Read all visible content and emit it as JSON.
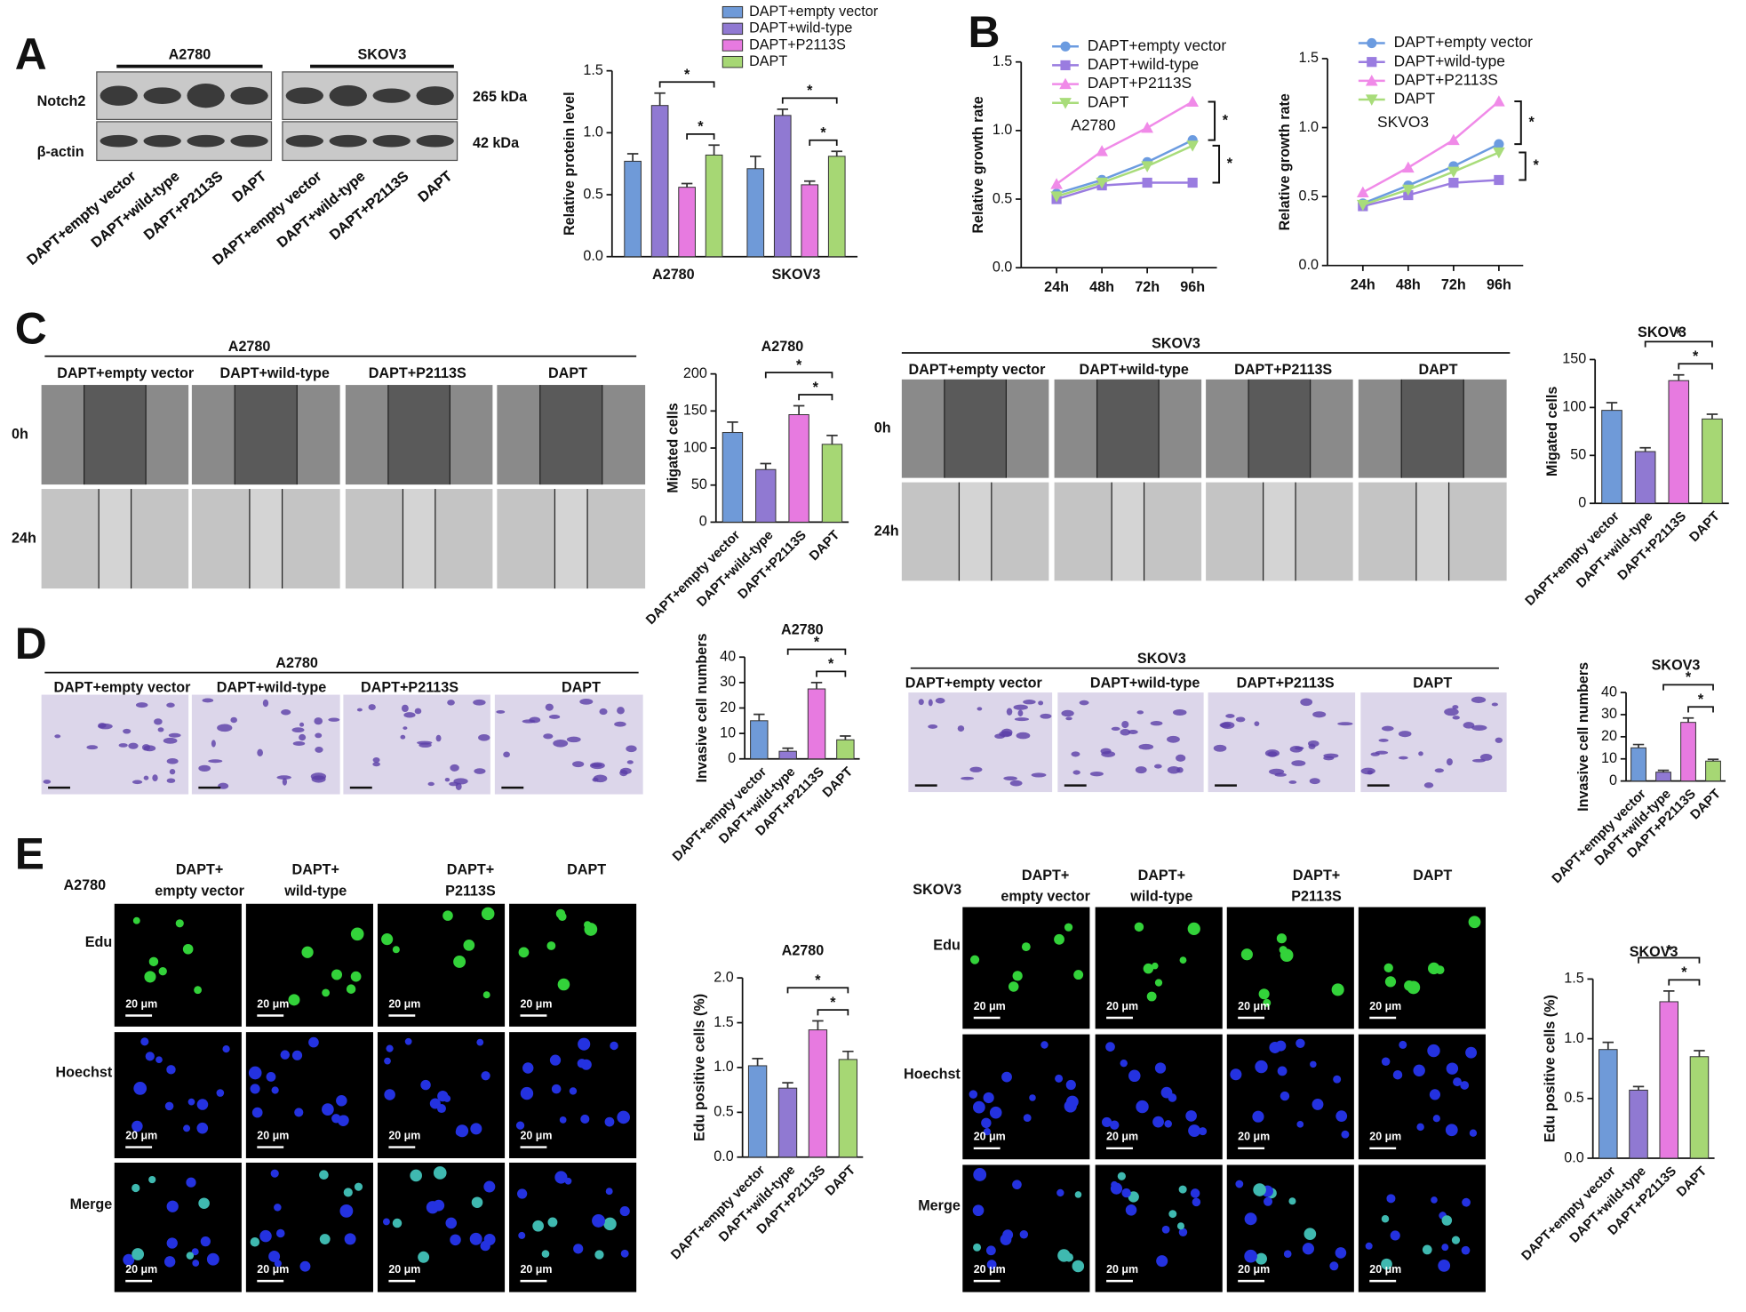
{
  "panel_labels": [
    "A",
    "B",
    "C",
    "D",
    "E"
  ],
  "blot": {
    "groups": [
      "A2780",
      "SKOV3"
    ],
    "rows": [
      "Notch2",
      "β-actin"
    ],
    "sizes": [
      "265 kDa",
      "42 kDa"
    ],
    "lanes": [
      "DAPT+empty vector",
      "DAPT+wild-type",
      "DAPT+P2113S",
      "DAPT"
    ]
  },
  "wound": {
    "panels": [
      "A2780",
      "SKOV3"
    ],
    "columns": [
      "DAPT+empty vector",
      "DAPT+wild-type",
      "DAPT+P2113S",
      "DAPT"
    ],
    "rows": [
      "0h",
      "24h"
    ]
  },
  "transwell": {
    "panels": [
      "A2780",
      "SKOV3"
    ],
    "columns": [
      "DAPT+empty vector",
      "DAPT+wild-type",
      "DAPT+P2113S",
      "DAPT"
    ]
  },
  "edu": {
    "panels": [
      "A2780",
      "SKOV3"
    ],
    "columns": [
      [
        "DAPT+",
        "empty vector"
      ],
      [
        "DAPT+",
        "wild-type"
      ],
      [
        "DAPT+",
        "P2113S"
      ],
      [
        "DAPT"
      ]
    ],
    "rows": [
      "Edu",
      "Hoechst",
      "Merge"
    ],
    "scale_bar": "20 μm"
  },
  "chart_data": [
    {
      "type": "grouped-bar",
      "categories": [
        "A2780",
        "SKOV3"
      ],
      "ylabel": "Relative protein level",
      "ylim": [
        0,
        1.5
      ],
      "yticks": [
        {
          "value": 0,
          "label": "0.0"
        },
        0.5,
        {
          "value": 1,
          "label": "1.0"
        },
        1.5
      ],
      "series": [
        {
          "name": "DAPT+empty vector",
          "color": "#6f9ad8",
          "values": [
            0.77,
            0.71
          ],
          "errors": [
            0.06,
            0.1
          ]
        },
        {
          "name": "DAPT+wild-type",
          "color": "#9079d2",
          "values": [
            1.22,
            1.14
          ],
          "errors": [
            0.1,
            0.05
          ]
        },
        {
          "name": "DAPT+P2113S",
          "color": "#e77ae0",
          "values": [
            0.56,
            0.58
          ],
          "errors": [
            0.03,
            0.03
          ]
        },
        {
          "name": "DAPT",
          "color": "#a6d774",
          "values": [
            0.82,
            0.81
          ],
          "errors": [
            0.08,
            0.04
          ]
        }
      ],
      "annotations": [
        {
          "text": "*",
          "group": 0,
          "between": [
            1,
            3
          ]
        },
        {
          "text": "*",
          "group": 0,
          "between": [
            2,
            3
          ]
        },
        {
          "text": "*",
          "group": 1,
          "between": [
            1,
            3
          ]
        },
        {
          "text": "*",
          "group": 1,
          "between": [
            2,
            3
          ]
        }
      ]
    },
    {
      "type": "line",
      "label": "A2780",
      "categories": [
        "24h",
        "48h",
        "72h",
        "96h"
      ],
      "ylabel": "Relative growth rate",
      "ylim": [
        0,
        1.5
      ],
      "yticks": [
        {
          "value": 0,
          "label": "0.0"
        },
        0.5,
        {
          "value": 1,
          "label": "1.0"
        },
        1.5
      ],
      "series": [
        {
          "name": "DAPT+empty vector",
          "color": "#6b9be0",
          "marker": "circle",
          "values": [
            0.54,
            0.64,
            0.77,
            0.93
          ]
        },
        {
          "name": "DAPT+wild-type",
          "color": "#9a7ce0",
          "marker": "square",
          "values": [
            0.5,
            0.6,
            0.62,
            0.62
          ]
        },
        {
          "name": "DAPT+P2113S",
          "color": "#f08ae8",
          "marker": "triangle-up",
          "values": [
            0.61,
            0.85,
            1.02,
            1.21
          ]
        },
        {
          "name": "DAPT",
          "color": "#a8dc7a",
          "marker": "triangle-down",
          "values": [
            0.52,
            0.62,
            0.74,
            0.89
          ]
        }
      ],
      "annotations": [
        {
          "text": "*",
          "between": [
            2,
            0
          ]
        },
        {
          "text": "*",
          "between": [
            3,
            1
          ]
        }
      ]
    },
    {
      "type": "line",
      "label": "SKVO3",
      "categories": [
        "24h",
        "48h",
        "72h",
        "96h"
      ],
      "ylabel": "Relative growth rate",
      "ylim": [
        0,
        1.5
      ],
      "yticks": [
        {
          "value": 0,
          "label": "0.0"
        },
        0.5,
        {
          "value": 1,
          "label": "1.0"
        },
        1.5
      ],
      "series": [
        {
          "name": "DAPT+empty vector",
          "color": "#6b9be0",
          "marker": "circle",
          "values": [
            0.45,
            0.58,
            0.72,
            0.88
          ]
        },
        {
          "name": "DAPT+wild-type",
          "color": "#9a7ce0",
          "marker": "square",
          "values": [
            0.43,
            0.51,
            0.6,
            0.62
          ]
        },
        {
          "name": "DAPT+P2113S",
          "color": "#f08ae8",
          "marker": "triangle-up",
          "values": [
            0.53,
            0.71,
            0.91,
            1.19
          ]
        },
        {
          "name": "DAPT",
          "color": "#a8dc7a",
          "marker": "triangle-down",
          "values": [
            0.44,
            0.55,
            0.68,
            0.82
          ]
        }
      ],
      "annotations": [
        {
          "text": "*",
          "between": [
            2,
            0
          ]
        },
        {
          "text": "*",
          "between": [
            3,
            1
          ]
        }
      ]
    },
    {
      "type": "bar",
      "title": "A2780",
      "ylabel": "Migated cells",
      "categories": [
        "DAPT+empty vector",
        "DAPT+wild-type",
        "DAPT+P2113S",
        "DAPT"
      ],
      "values": [
        121,
        71,
        145,
        105
      ],
      "errors": [
        14,
        8,
        12,
        12
      ],
      "colors": [
        "#6f9ad8",
        "#9079d2",
        "#e77ae0",
        "#a6d774"
      ],
      "ylim": [
        0,
        200
      ],
      "yticks": [
        0,
        50,
        100,
        150,
        200
      ],
      "annotations": [
        {
          "text": "*",
          "between": [
            1,
            3
          ]
        },
        {
          "text": "*",
          "between": [
            2,
            3
          ]
        }
      ]
    },
    {
      "type": "bar",
      "title": "SKOV3",
      "ylabel": "Migated cells",
      "categories": [
        "DAPT+empty vector",
        "DAPT+wild-type",
        "DAPT+P2113S",
        "DAPT"
      ],
      "values": [
        97,
        54,
        128,
        88
      ],
      "errors": [
        8,
        4,
        6,
        5
      ],
      "colors": [
        "#6f9ad8",
        "#9079d2",
        "#e77ae0",
        "#a6d774"
      ],
      "ylim": [
        0,
        150
      ],
      "yticks": [
        0,
        50,
        100,
        150
      ],
      "annotations": [
        {
          "text": "*",
          "between": [
            1,
            3
          ]
        },
        {
          "text": "*",
          "between": [
            2,
            3
          ]
        }
      ]
    },
    {
      "type": "bar",
      "title": "A2780",
      "ylabel": "Invasive cell numbers",
      "categories": [
        "DAPT+empty vector",
        "DAPT+wild-type",
        "DAPT+P2113S",
        "DAPT"
      ],
      "values": [
        15,
        3,
        27.5,
        7.5
      ],
      "errors": [
        2.5,
        1.2,
        2.5,
        1.5
      ],
      "colors": [
        "#6f9ad8",
        "#9079d2",
        "#e77ae0",
        "#a6d774"
      ],
      "ylim": [
        0,
        40
      ],
      "yticks": [
        0,
        10,
        20,
        30,
        40
      ],
      "annotations": [
        {
          "text": "*",
          "between": [
            1,
            3
          ]
        },
        {
          "text": "*",
          "between": [
            2,
            3
          ]
        }
      ]
    },
    {
      "type": "bar",
      "title": "SKOV3",
      "ylabel": "Invasive cell numbers",
      "categories": [
        "DAPT+empty vector",
        "DAPT+wild-type",
        "DAPT+P2113S",
        "DAPT"
      ],
      "values": [
        15,
        4,
        26.5,
        9
      ],
      "errors": [
        1.5,
        0.8,
        2,
        0.8
      ],
      "colors": [
        "#6f9ad8",
        "#9079d2",
        "#e77ae0",
        "#a6d774"
      ],
      "ylim": [
        0,
        40
      ],
      "yticks": [
        0,
        10,
        20,
        30,
        40
      ],
      "annotations": [
        {
          "text": "*",
          "between": [
            1,
            3
          ]
        },
        {
          "text": "*",
          "between": [
            2,
            3
          ]
        }
      ]
    },
    {
      "type": "bar",
      "title": "A2780",
      "ylabel": "Edu positive cells (%)",
      "categories": [
        "DAPT+empty vector",
        "DAPT+wild-type",
        "DAPT+P2113S",
        "DAPT"
      ],
      "values": [
        1.02,
        0.77,
        1.42,
        1.09
      ],
      "errors": [
        0.08,
        0.06,
        0.1,
        0.09
      ],
      "colors": [
        "#6f9ad8",
        "#9079d2",
        "#e77ae0",
        "#a6d774"
      ],
      "ylim": [
        0,
        2
      ],
      "yticks": [
        {
          "value": 0,
          "label": "0.0"
        },
        0.5,
        {
          "value": 1,
          "label": "1.0"
        },
        1.5,
        {
          "value": 2,
          "label": "2.0"
        }
      ],
      "annotations": [
        {
          "text": "*",
          "between": [
            1,
            3
          ]
        },
        {
          "text": "*",
          "between": [
            2,
            3
          ]
        }
      ]
    },
    {
      "type": "bar",
      "title": "SKOV3",
      "ylabel": "Edu positive cells (%)",
      "categories": [
        "DAPT+empty vector",
        "DAPT+wild-type",
        "DAPT+P2113S",
        "DAPT"
      ],
      "values": [
        0.91,
        0.57,
        1.31,
        0.85
      ],
      "errors": [
        0.06,
        0.03,
        0.09,
        0.05
      ],
      "colors": [
        "#6f9ad8",
        "#9079d2",
        "#e77ae0",
        "#a6d774"
      ],
      "ylim": [
        0,
        1.5
      ],
      "yticks": [
        {
          "value": 0,
          "label": "0.0"
        },
        0.5,
        {
          "value": 1,
          "label": "1.0"
        },
        1.5
      ],
      "annotations": [
        {
          "text": "*",
          "between": [
            1,
            3
          ]
        },
        {
          "text": "*",
          "between": [
            2,
            3
          ]
        }
      ]
    }
  ]
}
